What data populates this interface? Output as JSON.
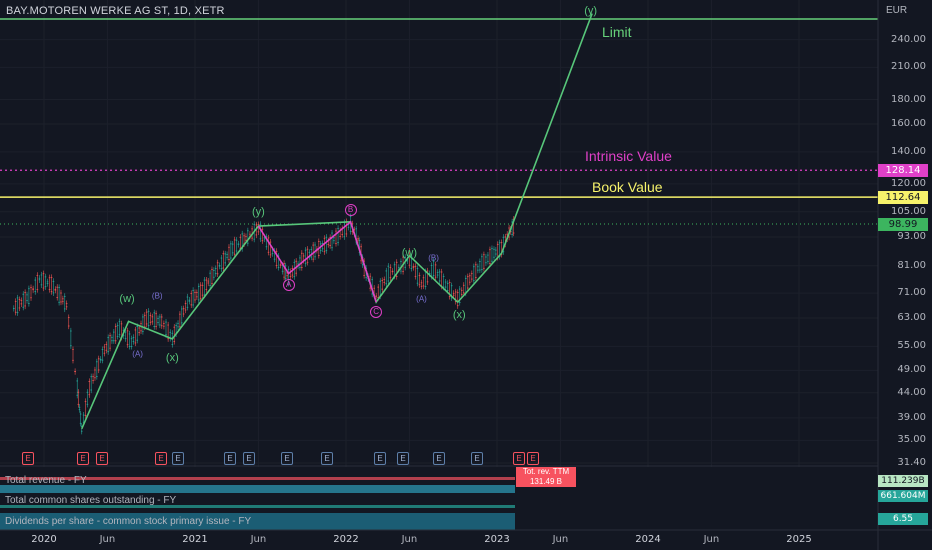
{
  "title": "BAY.MOTOREN WERKE AG ST, 1D, XETR",
  "currency": "EUR",
  "colors": {
    "bg": "#131722",
    "limit": "#66d17a",
    "intrinsic": "#e040c8",
    "book": "#f7f36b",
    "wave": "#57c67a",
    "pinkwave": "#e040c8",
    "bar_up": "#26a69a",
    "bar_down": "#ef5350"
  },
  "price_labels": [
    {
      "value": "128.14",
      "price": 128.14,
      "color": "#e040c8"
    },
    {
      "value": "112.64",
      "price": 112.64,
      "color": "#f7f36b"
    },
    {
      "value": "98.99",
      "price": 98.99,
      "color": "#3cb55f"
    }
  ],
  "horizontal_labels": [
    {
      "text": "Limit",
      "color": "#66d17a"
    },
    {
      "text": "Intrinsic Value",
      "color": "#e040c8"
    },
    {
      "text": "Book Value",
      "color": "#f7f36b"
    }
  ],
  "indicators": [
    {
      "label": "Total revenue - FY",
      "value": "111.239B",
      "value_color": "#26a69a"
    },
    {
      "label": "Total common shares outstanding - FY",
      "value": "661.604M",
      "value_color": "#26a69a"
    },
    {
      "label": "Dividends per share - common stock primary issue - FY",
      "value": "6.55",
      "value_color": "#26a69a"
    }
  ],
  "rev_callout": {
    "line1": "Tot. rev. TTM",
    "line2": "131.49 B"
  },
  "earnings_badge_letter": "E",
  "chart_data": {
    "type": "line",
    "title": "BAY.MOTOREN WERKE AG ST, 1D, XETR",
    "y_scale": "log",
    "ylim": [
      31.4,
      270
    ],
    "y_ticks": [
      31.4,
      35.0,
      39.0,
      44.0,
      49.0,
      55.0,
      63.0,
      71.0,
      81.0,
      93.0,
      105.0,
      120.0,
      140.0,
      160.0,
      180.0,
      210.0,
      240.0
    ],
    "x_ticks": [
      "2020",
      "Jun",
      "2021",
      "Jun",
      "2022",
      "Jun",
      "2023",
      "Jun",
      "2024",
      "Jun",
      "2025"
    ],
    "x_year_ticks": [
      "2020",
      "2021",
      "2022",
      "2023",
      "2024",
      "2025"
    ],
    "horizontal_lines": [
      {
        "name": "Limit",
        "price": 255
      },
      {
        "name": "Intrinsic Value",
        "price": 128.14
      },
      {
        "name": "Book Value",
        "price": 112.64
      },
      {
        "name": "Last",
        "price": 98.99
      }
    ],
    "last_price": 98.99,
    "wave_labels": [
      {
        "text": "(w)",
        "date": "2020.55",
        "price": 69
      },
      {
        "text": "(x)",
        "date": "2020.85",
        "price": 52
      },
      {
        "text": "(y)",
        "date": "2021.42",
        "price": 105
      },
      {
        "text": "(w)",
        "date": "2022.42",
        "price": 86
      },
      {
        "text": "(x)",
        "date": "2022.75",
        "price": 64
      },
      {
        "text": "(y)",
        "date": "2023.62",
        "price": 275
      },
      {
        "text": "(A)",
        "date": "2020.62",
        "price": 53
      },
      {
        "text": "(B)",
        "date": "2020.75",
        "price": 70
      },
      {
        "text": "(A)",
        "date": "2022.50",
        "price": 69
      },
      {
        "text": "(B)",
        "date": "2022.58",
        "price": 84
      }
    ],
    "circle_labels": [
      {
        "text": "A",
        "date": "2021.62",
        "price": 74
      },
      {
        "text": "B",
        "date": "2022.03",
        "price": 106
      },
      {
        "text": "C",
        "date": "2022.20",
        "price": 65
      }
    ],
    "green_wave_path": [
      {
        "date": "2020.25",
        "price": 37
      },
      {
        "date": "2020.56",
        "price": 62
      },
      {
        "date": "2020.85",
        "price": 57
      },
      {
        "date": "2021.42",
        "price": 98
      },
      {
        "date": "2022.03",
        "price": 100
      },
      {
        "date": "2022.20",
        "price": 68
      },
      {
        "date": "2022.42",
        "price": 85
      },
      {
        "date": "2022.74",
        "price": 68
      },
      {
        "date": "2023.03",
        "price": 86
      },
      {
        "date": "2023.63",
        "price": 272
      }
    ],
    "pink_wave_path": [
      {
        "date": "2021.42",
        "price": 98
      },
      {
        "date": "2021.62",
        "price": 78
      },
      {
        "date": "2022.03",
        "price": 100
      },
      {
        "date": "2022.20",
        "price": 68
      }
    ],
    "price_series": [
      {
        "date": "2019.80",
        "price": 66
      },
      {
        "date": "2019.90",
        "price": 70
      },
      {
        "date": "2019.97",
        "price": 76
      },
      {
        "date": "2020.05",
        "price": 74
      },
      {
        "date": "2020.15",
        "price": 67
      },
      {
        "date": "2020.22",
        "price": 45
      },
      {
        "date": "2020.25",
        "price": 37
      },
      {
        "date": "2020.30",
        "price": 45
      },
      {
        "date": "2020.40",
        "price": 54
      },
      {
        "date": "2020.50",
        "price": 60
      },
      {
        "date": "2020.58",
        "price": 56
      },
      {
        "date": "2020.68",
        "price": 63
      },
      {
        "date": "2020.78",
        "price": 62
      },
      {
        "date": "2020.85",
        "price": 57
      },
      {
        "date": "2020.95",
        "price": 68
      },
      {
        "date": "2021.05",
        "price": 72
      },
      {
        "date": "2021.15",
        "price": 80
      },
      {
        "date": "2021.25",
        "price": 88
      },
      {
        "date": "2021.35",
        "price": 93
      },
      {
        "date": "2021.42",
        "price": 97
      },
      {
        "date": "2021.50",
        "price": 88
      },
      {
        "date": "2021.58",
        "price": 80
      },
      {
        "date": "2021.62",
        "price": 77
      },
      {
        "date": "2021.72",
        "price": 84
      },
      {
        "date": "2021.82",
        "price": 88
      },
      {
        "date": "2021.92",
        "price": 92
      },
      {
        "date": "2022.03",
        "price": 99
      },
      {
        "date": "2022.08",
        "price": 92
      },
      {
        "date": "2022.12",
        "price": 80
      },
      {
        "date": "2022.20",
        "price": 70
      },
      {
        "date": "2022.28",
        "price": 78
      },
      {
        "date": "2022.35",
        "price": 80
      },
      {
        "date": "2022.42",
        "price": 84
      },
      {
        "date": "2022.50",
        "price": 74
      },
      {
        "date": "2022.58",
        "price": 80
      },
      {
        "date": "2022.66",
        "price": 74
      },
      {
        "date": "2022.74",
        "price": 69
      },
      {
        "date": "2022.82",
        "price": 76
      },
      {
        "date": "2022.90",
        "price": 82
      },
      {
        "date": "2022.98",
        "price": 86
      },
      {
        "date": "2023.03",
        "price": 88
      },
      {
        "date": "2023.08",
        "price": 95
      },
      {
        "date": "2023.12",
        "price": 98.99
      }
    ]
  }
}
